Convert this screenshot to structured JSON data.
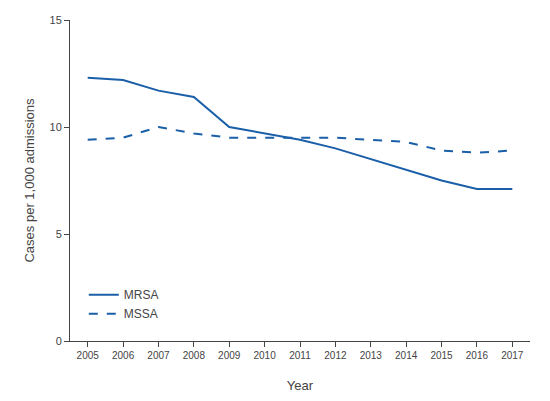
{
  "chart_data": {
    "type": "line",
    "x": [
      2005,
      2006,
      2007,
      2008,
      2009,
      2010,
      2011,
      2012,
      2013,
      2014,
      2015,
      2016,
      2017
    ],
    "series": [
      {
        "name": "MRSA",
        "color": "#1a5fa8",
        "line_style": "solid",
        "values": [
          12.3,
          12.2,
          11.7,
          11.4,
          10.0,
          9.7,
          9.4,
          9.0,
          8.5,
          8.0,
          7.5,
          7.1,
          7.1
        ]
      },
      {
        "name": "MSSA",
        "color": "#1a5fa8",
        "line_style": "dashed",
        "values": [
          9.4,
          9.5,
          10.0,
          9.7,
          9.5,
          9.5,
          9.5,
          9.5,
          9.4,
          9.3,
          8.9,
          8.8,
          8.9
        ]
      }
    ],
    "xlabel": "Year",
    "ylabel": "Cases per 1,000 admissions",
    "xlim": [
      2004.5,
      2017.5
    ],
    "xticks": [
      2005,
      2006,
      2007,
      2008,
      2009,
      2010,
      2011,
      2012,
      2013,
      2014,
      2015,
      2016,
      2017
    ],
    "ylim": [
      0,
      15
    ],
    "yticks": [
      0,
      5,
      10,
      15
    ],
    "grid": false,
    "legend": "lower left"
  }
}
